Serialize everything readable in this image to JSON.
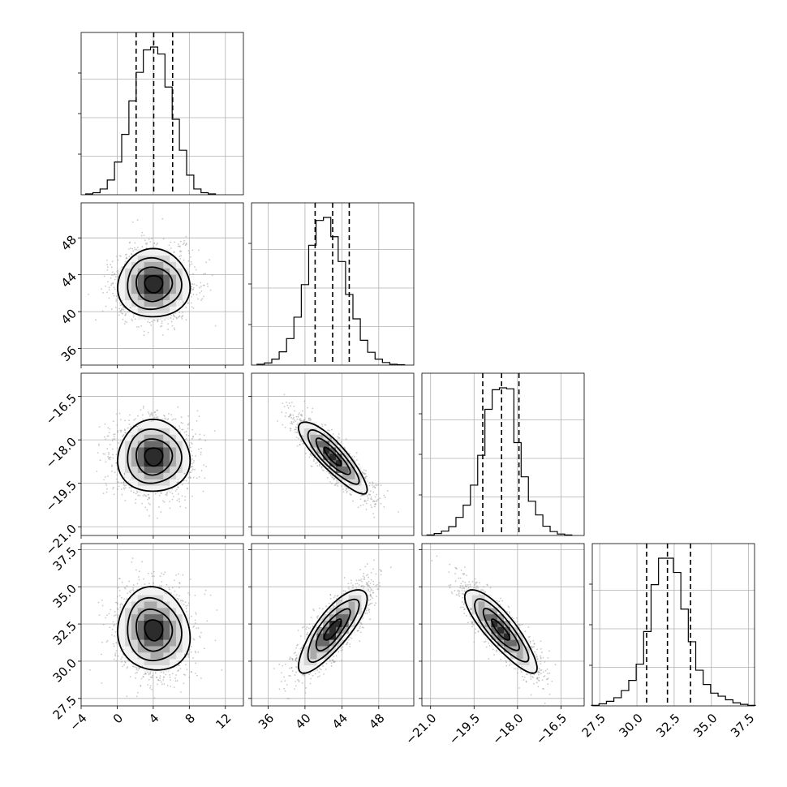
{
  "chart_data": {
    "type": "corner",
    "parameters": [
      {
        "index": 0,
        "range": [
          -4,
          14
        ],
        "ticks": [
          -4,
          0,
          4,
          8,
          12
        ],
        "tick_labels": [
          "−4",
          "0",
          "4",
          "8",
          "12"
        ],
        "quantiles": [
          2.1,
          4.05,
          6.15
        ],
        "mean": 4.05,
        "sd": 2.0
      },
      {
        "index": 1,
        "range": [
          34.2,
          51.8
        ],
        "ticks": [
          36,
          40,
          44,
          48
        ],
        "tick_labels": [
          "36",
          "40",
          "44",
          "48"
        ],
        "quantiles": [
          41.1,
          43.0,
          44.8
        ],
        "mean": 43.0,
        "sd": 1.85
      },
      {
        "index": 2,
        "range": [
          -21.3,
          -15.7
        ],
        "ticks": [
          -21.0,
          -19.5,
          -18.0,
          -16.5
        ],
        "tick_labels": [
          "−21.0",
          "−19.5",
          "−18.0",
          "−16.5"
        ],
        "quantiles": [
          -19.2,
          -18.55,
          -17.95
        ],
        "mean": -18.58,
        "sd": 0.62
      },
      {
        "index": 3,
        "range": [
          27.0,
          37.9
        ],
        "ticks": [
          27.5,
          30.0,
          32.5,
          35.0,
          37.5
        ],
        "tick_labels": [
          "27.5",
          "30.0",
          "32.5",
          "35.0",
          "37.5"
        ],
        "quantiles": [
          30.65,
          32.05,
          33.6
        ],
        "mean": 32.1,
        "sd": 1.4
      }
    ],
    "histograms": [
      {
        "param": 0,
        "bin_centers": [
          -3.1,
          -2.3,
          -1.5,
          -0.7,
          0.1,
          0.9,
          1.7,
          2.5,
          3.3,
          4.1,
          4.9,
          5.7,
          6.5,
          7.3,
          8.1,
          8.9,
          9.7,
          10.5
        ],
        "counts": [
          2,
          5,
          14,
          36,
          80,
          148,
          230,
          300,
          355,
          362,
          345,
          264,
          185,
          109,
          48,
          14,
          5,
          2
        ]
      },
      {
        "param": 1,
        "bin_centers": [
          35.2,
          36.0,
          36.8,
          37.6,
          38.4,
          39.2,
          40.0,
          40.8,
          41.6,
          42.4,
          43.2,
          44.0,
          44.8,
          45.6,
          46.4,
          47.2,
          48.0,
          48.8,
          49.6,
          50.4
        ],
        "counts": [
          2,
          5,
          14,
          31,
          62,
          112,
          188,
          280,
          338,
          345,
          300,
          242,
          165,
          108,
          58,
          30,
          14,
          6,
          2,
          1
        ]
      },
      {
        "param": 2,
        "bin_centers": [
          -21.0,
          -20.75,
          -20.5,
          -20.25,
          -20.0,
          -19.75,
          -19.5,
          -19.25,
          -19.0,
          -18.75,
          -18.5,
          -18.25,
          -18.0,
          -17.75,
          -17.5,
          -17.25,
          -17.0,
          -16.75,
          -16.5,
          -16.25
        ],
        "counts": [
          1,
          4,
          9,
          18,
          37,
          62,
          103,
          164,
          258,
          298,
          302,
          300,
          190,
          120,
          70,
          42,
          19,
          8,
          3,
          1
        ]
      },
      {
        "param": 3,
        "bin_centers": [
          27.2,
          27.7,
          28.2,
          28.7,
          29.2,
          29.7,
          30.2,
          30.7,
          31.2,
          31.7,
          32.2,
          32.7,
          33.2,
          33.7,
          34.2,
          34.7,
          35.2,
          35.7,
          36.2,
          36.7,
          37.2,
          37.7
        ],
        "counts": [
          1,
          4,
          9,
          16,
          30,
          50,
          82,
          146,
          238,
          290,
          290,
          262,
          190,
          126,
          70,
          42,
          25,
          19,
          12,
          6,
          3,
          1
        ]
      }
    ],
    "pairs": [
      {
        "x": 0,
        "y": 1,
        "corr": 0.0
      },
      {
        "x": 0,
        "y": 2,
        "corr": 0.0
      },
      {
        "x": 0,
        "y": 3,
        "corr": -0.08
      },
      {
        "x": 1,
        "y": 2,
        "corr": -0.86
      },
      {
        "x": 1,
        "y": 3,
        "corr": 0.8
      },
      {
        "x": 2,
        "y": 3,
        "corr": -0.85
      }
    ],
    "contour_levels_sigma": [
      0.5,
      1.0,
      1.5,
      2.0
    ],
    "grid": true,
    "title": "",
    "xlabel": "",
    "ylabel": ""
  }
}
